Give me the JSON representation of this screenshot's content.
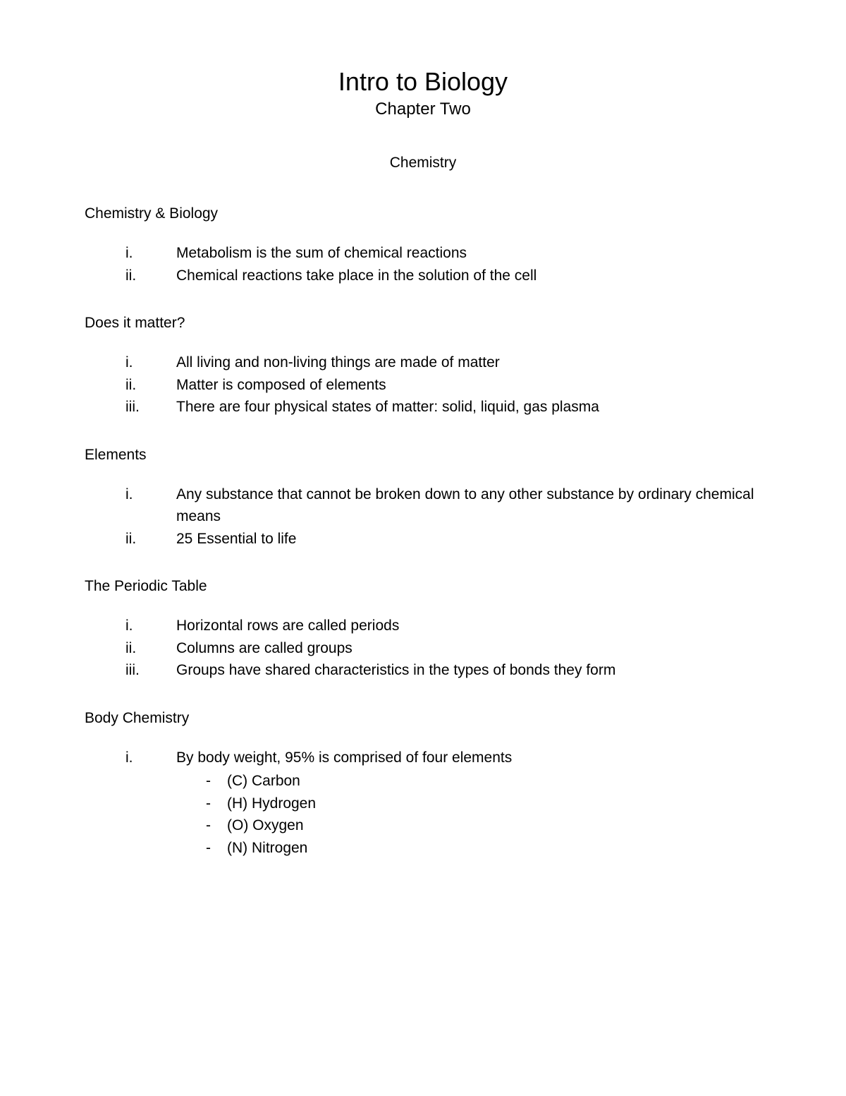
{
  "document": {
    "title": "Intro to Biology",
    "subtitle": "Chapter Two",
    "topic": "Chemistry",
    "background_color": "#ffffff",
    "text_color": "#000000",
    "title_fontsize": 36,
    "subtitle_fontsize": 24,
    "body_fontsize": 21,
    "font_family": "Verdana"
  },
  "sections": {
    "s0": {
      "heading": "Chemistry & Biology",
      "items": {
        "i0": {
          "marker": "i.",
          "text": "Metabolism is the sum of chemical reactions"
        },
        "i1": {
          "marker": "ii.",
          "text": "Chemical reactions take place in the solution of the cell"
        }
      }
    },
    "s1": {
      "heading": "Does it matter?",
      "items": {
        "i0": {
          "marker": "i.",
          "text": "All living and non-living things are made of matter"
        },
        "i1": {
          "marker": "ii.",
          "text": "Matter is composed of elements"
        },
        "i2": {
          "marker": "iii.",
          "text": "There are four physical states of matter: solid, liquid, gas plasma"
        }
      }
    },
    "s2": {
      "heading": "Elements",
      "items": {
        "i0": {
          "marker": "i.",
          "text": "Any substance that cannot be broken down to any other substance by ordinary chemical means"
        },
        "i1": {
          "marker": "ii.",
          "text": "25 Essential to life"
        }
      }
    },
    "s3": {
      "heading": "The Periodic Table",
      "items": {
        "i0": {
          "marker": "i.",
          "text": "Horizontal rows are called periods"
        },
        "i1": {
          "marker": "ii.",
          "text": "Columns are called groups"
        },
        "i2": {
          "marker": "iii.",
          "text": "Groups have shared characteristics in the types of bonds they form"
        }
      }
    },
    "s4": {
      "heading": "Body Chemistry",
      "items": {
        "i0": {
          "marker": "i.",
          "text": "By body weight, 95% is comprised of four elements",
          "subitems": {
            "sub0": {
              "marker": "-",
              "text": "(C) Carbon"
            },
            "sub1": {
              "marker": "-",
              "text": "(H) Hydrogen"
            },
            "sub2": {
              "marker": "-",
              "text": "(O) Oxygen"
            },
            "sub3": {
              "marker": "-",
              "text": "(N) Nitrogen"
            }
          }
        }
      }
    }
  }
}
